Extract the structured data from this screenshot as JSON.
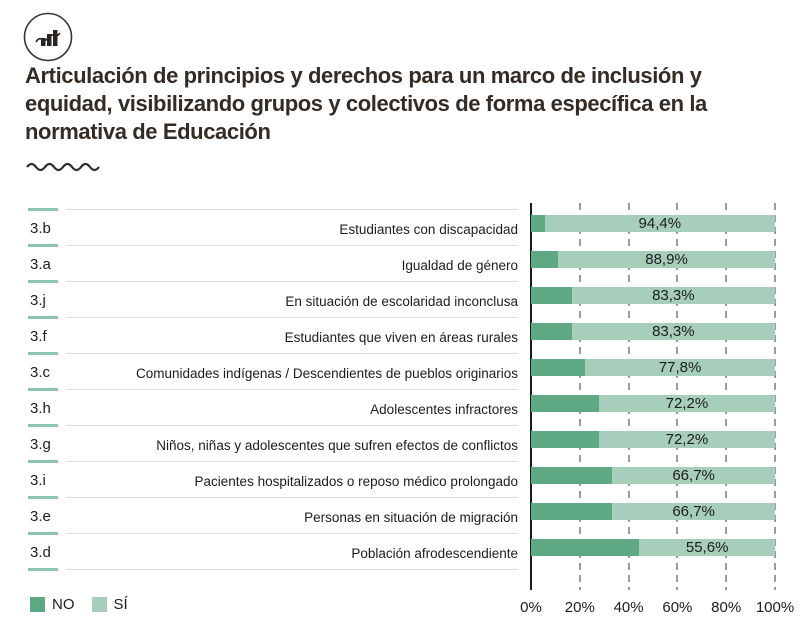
{
  "header": {
    "icon_name": "bar-chart-circle-icon",
    "title_lines": [
      "Articulación de principios y derechos para un marco de inclusión y",
      "equidad, visibilizando grupos y colectivos de forma específica en la",
      "normativa de Educación"
    ]
  },
  "legend": {
    "no_label": "NO",
    "si_label": "SÍ"
  },
  "colors": {
    "no": "#5ea886",
    "si": "#a6ceba",
    "row_dash": "#8cc5ab",
    "separator": "#dcdcdc",
    "grid": "#9b9b9b",
    "axis": "#1c1c1c",
    "title": "#332b24",
    "text": "#1c1c1c"
  },
  "chart_data": {
    "type": "bar",
    "orientation": "horizontal",
    "stacked": true,
    "title": "Articulación de principios y derechos para un marco de inclusión y equidad, visibilizando grupos y colectivos de forma específica en la normativa de Educación",
    "xlabel": "",
    "ylabel": "",
    "xlim": [
      0,
      100
    ],
    "grid": "dashed-vertical",
    "legend_position": "bottom-left",
    "legend_entries": [
      "NO",
      "SÍ"
    ],
    "x_ticks": [
      "0%",
      "20%",
      "40%",
      "60%",
      "80%",
      "100%"
    ],
    "categories": [
      "3.b",
      "3.a",
      "3.j",
      "3.f",
      "3.c",
      "3.h",
      "3.g",
      "3.i",
      "3.e",
      "3.d"
    ],
    "rows": [
      {
        "code": "3.b",
        "label": "Estudiantes con discapacidad",
        "no_value": 5.6,
        "si_value": 94.4,
        "si_label": "94,4%"
      },
      {
        "code": "3.a",
        "label": "Igualdad de género",
        "no_value": 11.1,
        "si_value": 88.9,
        "si_label": "88,9%"
      },
      {
        "code": "3.j",
        "label": "En situación de escolaridad inconclusa",
        "no_value": 16.7,
        "si_value": 83.3,
        "si_label": "83,3%"
      },
      {
        "code": "3.f",
        "label": "Estudiantes que viven en áreas rurales",
        "no_value": 16.7,
        "si_value": 83.3,
        "si_label": "83,3%"
      },
      {
        "code": "3.c",
        "label": "Comunidades indígenas / Descendientes de pueblos originarios",
        "no_value": 22.2,
        "si_value": 77.8,
        "si_label": "77,8%"
      },
      {
        "code": "3.h",
        "label": "Adolescentes infractores",
        "no_value": 27.8,
        "si_value": 72.2,
        "si_label": "72,2%"
      },
      {
        "code": "3.g",
        "label": "Niños, niñas y adolescentes que sufren efectos de conflictos",
        "no_value": 27.8,
        "si_value": 72.2,
        "si_label": "72,2%"
      },
      {
        "code": "3.i",
        "label": "Pacientes hospitalizados o reposo médico prolongado",
        "no_value": 33.3,
        "si_value": 66.7,
        "si_label": "66,7%"
      },
      {
        "code": "3.e",
        "label": "Personas en situación de migración",
        "no_value": 33.3,
        "si_value": 66.7,
        "si_label": "66,7%"
      },
      {
        "code": "3.d",
        "label": "Población afrodescendiente",
        "no_value": 44.4,
        "si_value": 55.6,
        "si_label": "55,6%"
      }
    ]
  }
}
